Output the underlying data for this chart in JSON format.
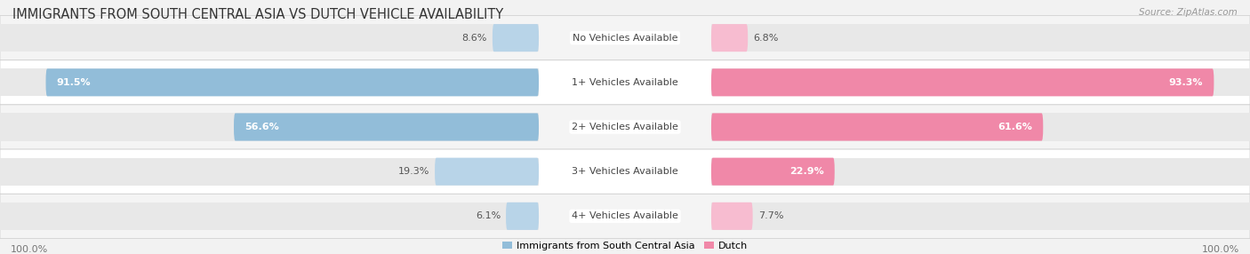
{
  "title": "IMMIGRANTS FROM SOUTH CENTRAL ASIA VS DUTCH VEHICLE AVAILABILITY",
  "source": "Source: ZipAtlas.com",
  "categories": [
    "No Vehicles Available",
    "1+ Vehicles Available",
    "2+ Vehicles Available",
    "3+ Vehicles Available",
    "4+ Vehicles Available"
  ],
  "left_values": [
    8.6,
    91.5,
    56.6,
    19.3,
    6.1
  ],
  "right_values": [
    6.8,
    93.3,
    61.6,
    22.9,
    7.7
  ],
  "left_color": "#92bdd9",
  "right_color": "#f088a8",
  "left_color_light": "#b8d4e8",
  "right_color_light": "#f7bcd0",
  "left_label": "Immigrants from South Central Asia",
  "right_label": "Dutch",
  "row_colors": [
    "#f4f4f4",
    "#ffffff"
  ],
  "bar_bg_left": "#e8e8e8",
  "bar_bg_right": "#e8e8e8",
  "max_value": 100.0,
  "title_fontsize": 10.5,
  "cat_fontsize": 8.0,
  "value_fontsize": 8.0,
  "legend_fontsize": 8.0
}
